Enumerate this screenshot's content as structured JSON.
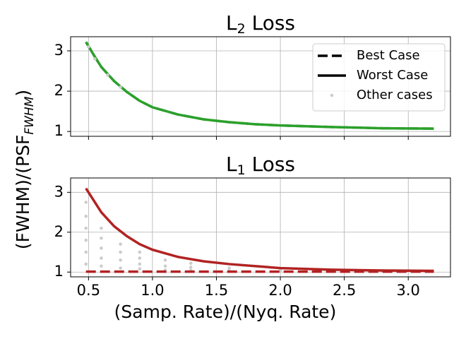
{
  "ylabel": "(FWHM)/(PSF",
  "ylabel_sub": "FWHM",
  "ylabel_end": ")",
  "chart_data": [
    {
      "type": "line",
      "title": "L",
      "title_sub": "2",
      "title_rest": " Loss",
      "xlim": [
        0.36,
        3.33
      ],
      "ylim": [
        0.88,
        3.35
      ],
      "xticks": [
        0.5,
        1.0,
        1.5,
        2.0,
        2.5,
        3.0
      ],
      "xticklabels": false,
      "yticks": [
        1,
        2,
        3
      ],
      "grid": true,
      "legend": "upper right",
      "legend_color": "#000000",
      "x": [
        0.48,
        0.55,
        0.6,
        0.7,
        0.8,
        0.9,
        1.0,
        1.2,
        1.4,
        1.6,
        1.8,
        2.0,
        2.4,
        2.8,
        3.2
      ],
      "series": [
        {
          "name": "Best Case",
          "style": "dashed",
          "color": "#2ca02c",
          "values": [
            3.22,
            2.85,
            2.6,
            2.25,
            1.98,
            1.76,
            1.6,
            1.42,
            1.3,
            1.23,
            1.18,
            1.15,
            1.11,
            1.08,
            1.07
          ]
        },
        {
          "name": "Worst Case",
          "style": "solid",
          "color": "#2ca02c",
          "values": [
            3.22,
            2.85,
            2.6,
            2.25,
            1.98,
            1.76,
            1.6,
            1.42,
            1.3,
            1.23,
            1.18,
            1.15,
            1.11,
            1.08,
            1.07
          ]
        },
        {
          "name": "Other cases",
          "style": "dots",
          "color": "#cccccc",
          "x": [
            0.5,
            0.55,
            0.65,
            0.75
          ],
          "values": [
            3.1,
            2.8,
            2.4,
            2.1
          ]
        }
      ]
    },
    {
      "type": "line",
      "title": "L",
      "title_sub": "1",
      "title_rest": " Loss",
      "xlabel": "(Samp. Rate)/(Nyq. Rate)",
      "xlim": [
        0.36,
        3.33
      ],
      "ylim": [
        0.88,
        3.36
      ],
      "xticks": [
        {
          "value": 0.5,
          "label": "0.5"
        },
        {
          "value": 1.0,
          "label": "1.0"
        },
        {
          "value": 1.5,
          "label": "1.5"
        },
        {
          "value": 2.0,
          "label": "2.0"
        },
        {
          "value": 2.5,
          "label": "2.5"
        },
        {
          "value": 3.0,
          "label": "3.0"
        }
      ],
      "yticks": [
        1,
        2,
        3
      ],
      "grid": true,
      "x": [
        0.48,
        0.55,
        0.6,
        0.7,
        0.8,
        0.9,
        1.0,
        1.2,
        1.4,
        1.6,
        1.8,
        2.0,
        2.4,
        2.8,
        3.2
      ],
      "series": [
        {
          "name": "Other cases",
          "style": "dots",
          "color": "#cccccc",
          "x": [
            0.48,
            0.48,
            0.48,
            0.48,
            0.48,
            0.48,
            0.6,
            0.6,
            0.6,
            0.6,
            0.6,
            0.75,
            0.75,
            0.75,
            0.75,
            0.9,
            0.9,
            0.9,
            0.9,
            1.1,
            1.1,
            1.1,
            1.3,
            1.3,
            1.3,
            1.6,
            1.6,
            2.0,
            2.0,
            2.5,
            3.0
          ],
          "values": [
            1.2,
            1.5,
            1.8,
            2.1,
            2.4,
            2.75,
            1.15,
            1.35,
            1.6,
            1.85,
            2.1,
            1.1,
            1.3,
            1.5,
            1.7,
            1.08,
            1.2,
            1.35,
            1.5,
            1.05,
            1.15,
            1.3,
            1.04,
            1.12,
            1.22,
            1.03,
            1.1,
            1.02,
            1.06,
            1.02,
            1.02
          ]
        },
        {
          "name": "Worst Case",
          "style": "solid",
          "color": "#b22222",
          "values": [
            3.1,
            2.75,
            2.5,
            2.15,
            1.9,
            1.7,
            1.56,
            1.38,
            1.27,
            1.2,
            1.15,
            1.1,
            1.06,
            1.04,
            1.03
          ]
        },
        {
          "name": "Best Case",
          "style": "dashed",
          "color": "#b22222",
          "values": [
            1.01,
            1.01,
            1.01,
            1.01,
            1.01,
            1.01,
            1.01,
            1.01,
            1.01,
            1.01,
            1.01,
            1.01,
            1.01,
            1.01,
            1.01
          ]
        }
      ]
    }
  ]
}
